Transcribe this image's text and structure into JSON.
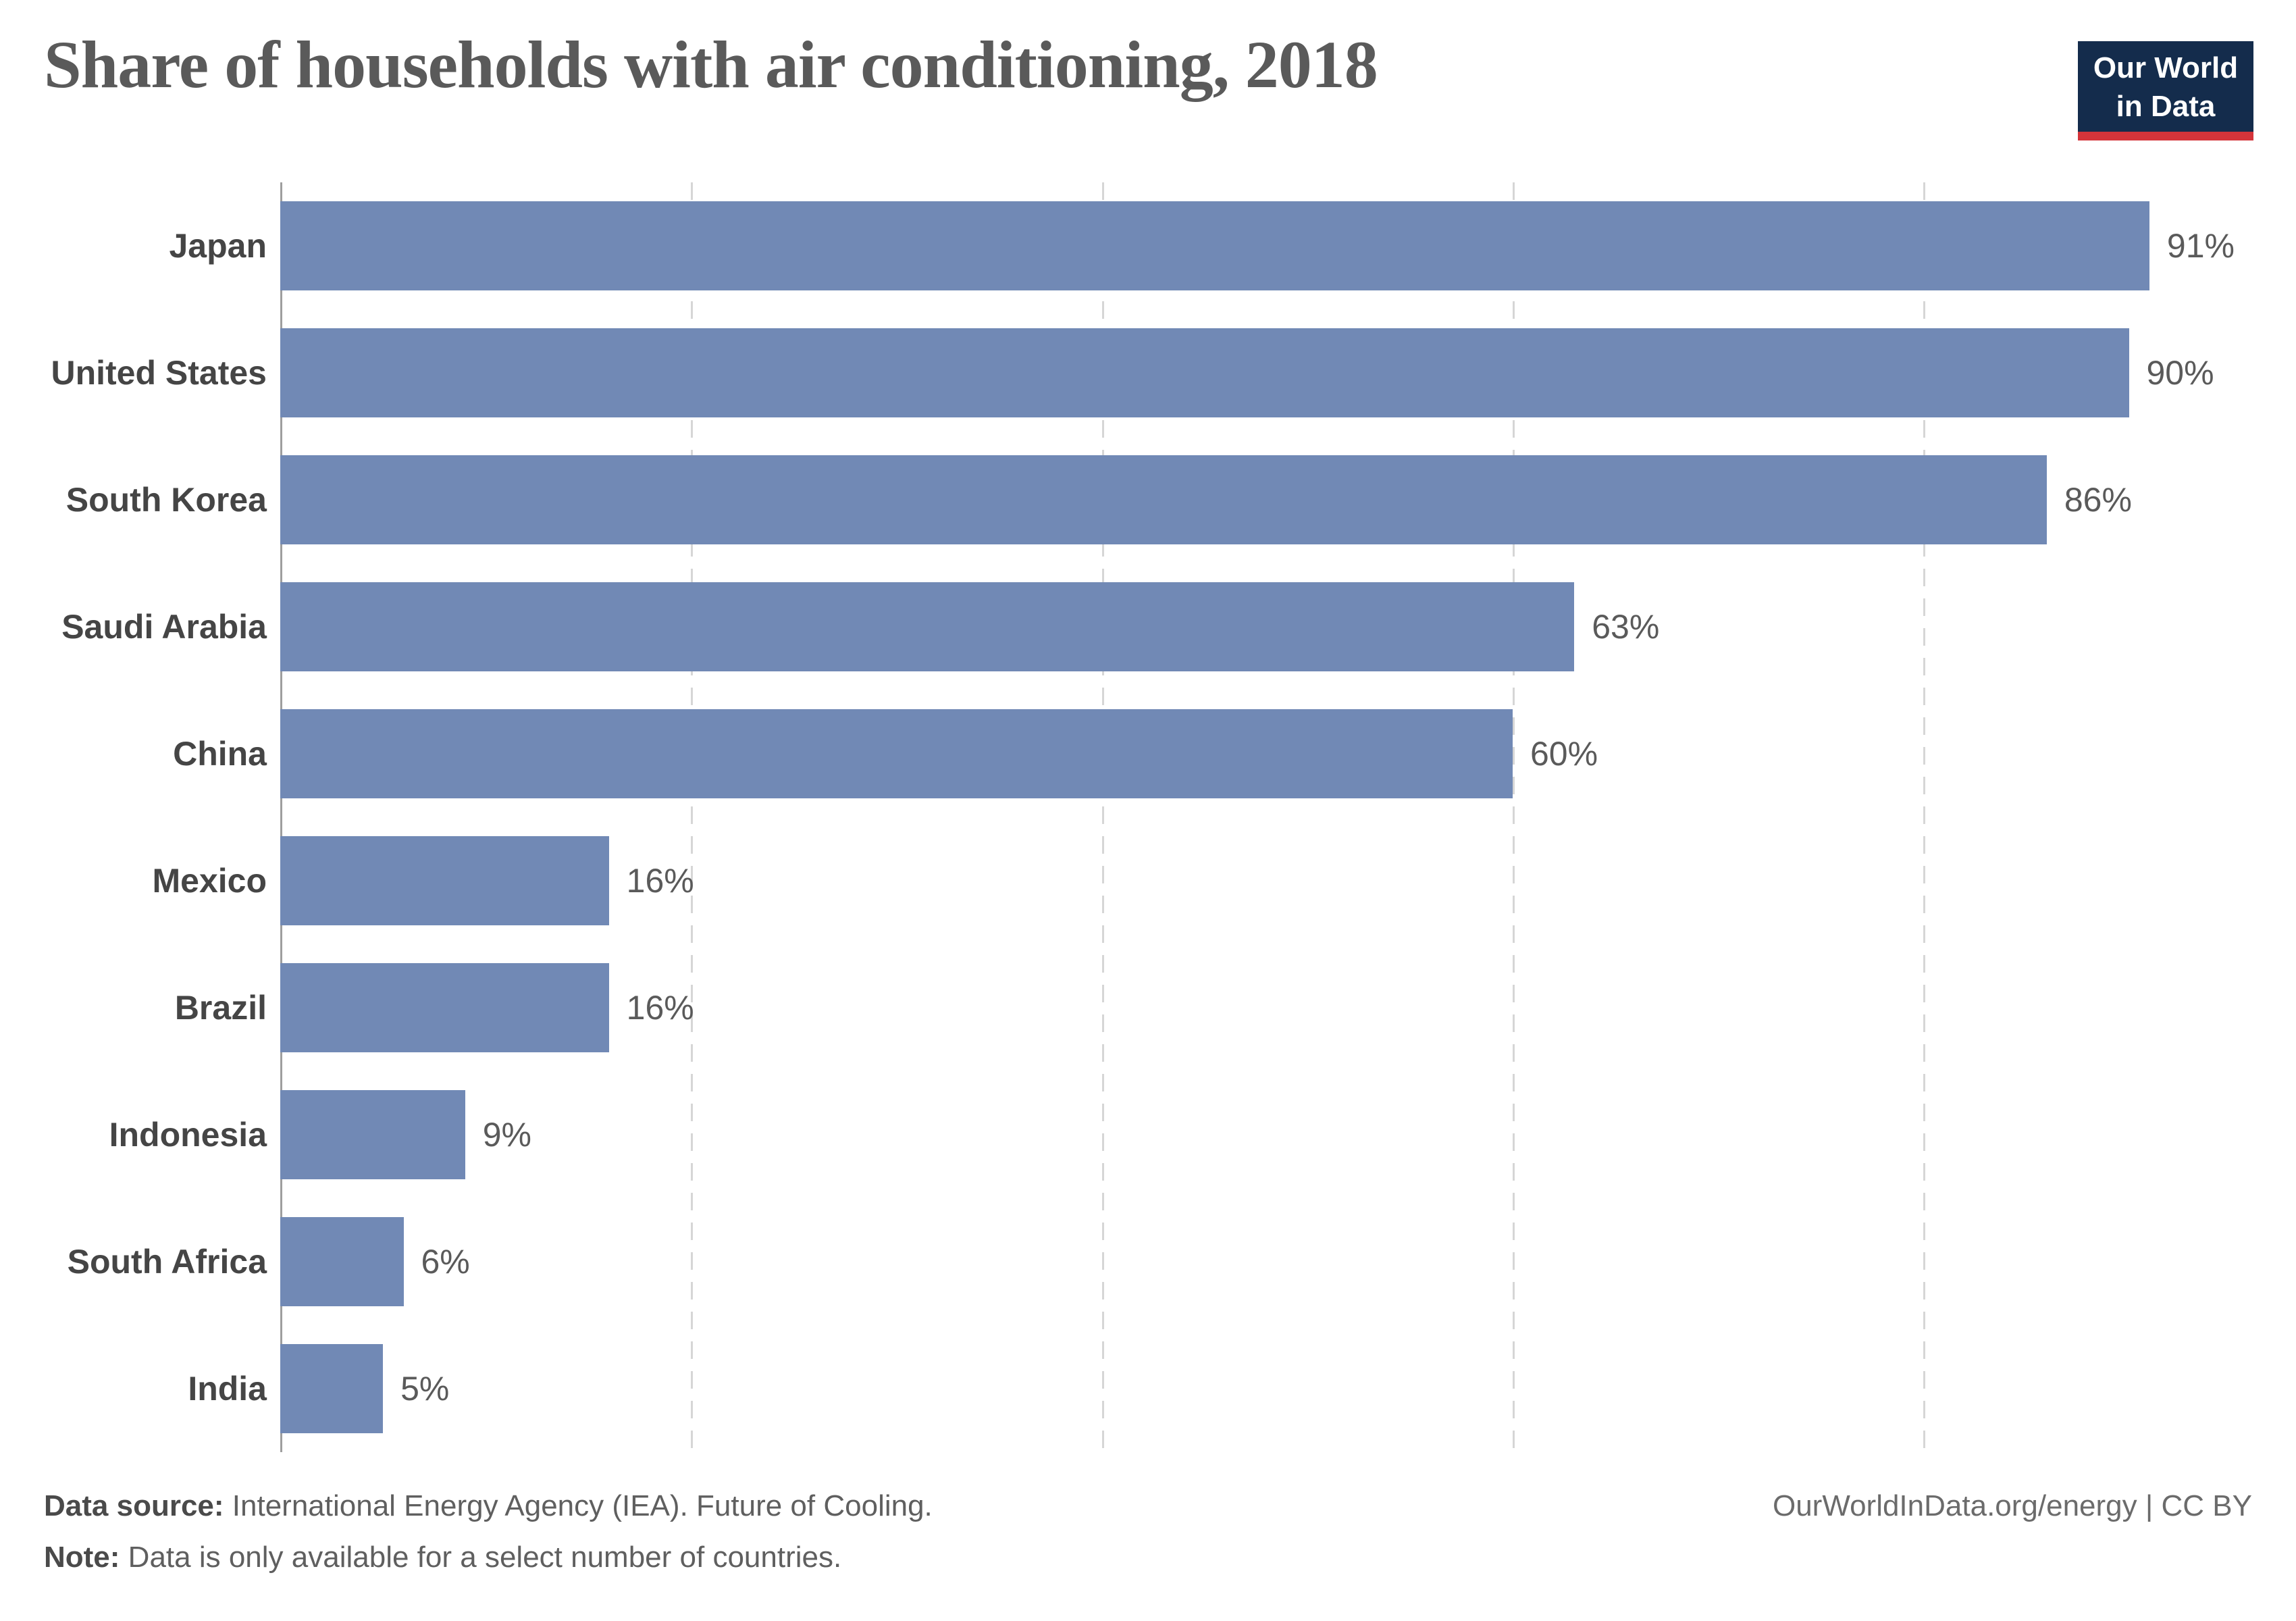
{
  "header": {
    "title": "Share of households with air conditioning, 2018"
  },
  "logo": {
    "line1": "Our World",
    "line2_prefix": "in ",
    "line2_bold": "Data",
    "bg_color": "#142c4c",
    "stripe_color": "#d4343a"
  },
  "chart_data": {
    "type": "bar",
    "orientation": "horizontal",
    "title": "Share of households with air conditioning, 2018",
    "categories": [
      "Japan",
      "United States",
      "South Korea",
      "Saudi Arabia",
      "China",
      "Mexico",
      "Brazil",
      "Indonesia",
      "South Africa",
      "India"
    ],
    "values": [
      91,
      90,
      86,
      63,
      60,
      16,
      16,
      9,
      6,
      5
    ],
    "value_labels": [
      "91%",
      "90%",
      "86%",
      "63%",
      "60%",
      "16%",
      "16%",
      "9%",
      "6%",
      "5%"
    ],
    "unit": "%",
    "xlim": [
      0,
      96
    ],
    "gridlines": [
      20,
      40,
      60,
      80
    ],
    "grid_style": "dashed",
    "legend": "none",
    "bar_color": "#7189b5",
    "axis_color": "#9e9e9e",
    "grid_color": "#d6d6d6",
    "label_color": "#454545",
    "value_color": "#5a5a5a"
  },
  "footer": {
    "source_label": "Data source:",
    "source_text": " International Energy Agency (IEA). Future of Cooling.",
    "note_label": "Note:",
    "note_text": " Data is only available for a select number of countries.",
    "credit": "OurWorldInData.org/energy | CC BY"
  }
}
